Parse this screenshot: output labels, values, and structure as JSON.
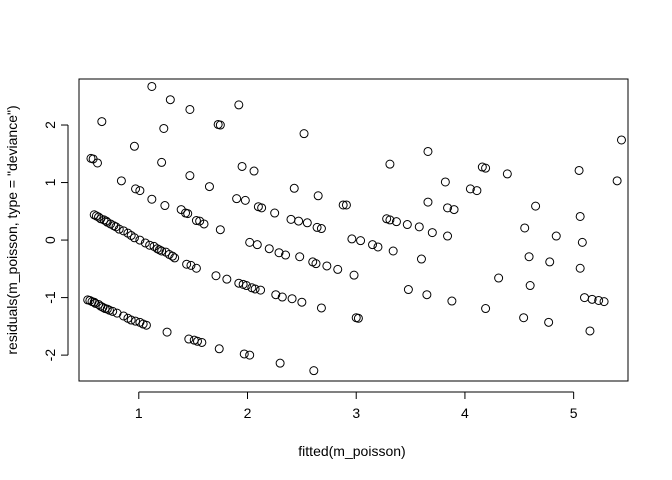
{
  "chart_data": {
    "type": "scatter",
    "xlabel": "fitted(m_poisson)",
    "ylabel": "residuals(m_poisson, type = \"deviance\")",
    "xlim": [
      0.45,
      5.5
    ],
    "ylim": [
      -2.45,
      2.8
    ],
    "x_ticks": [
      1,
      2,
      3,
      4,
      5
    ],
    "y_ticks": [
      -2,
      -1,
      0,
      1,
      2
    ],
    "grid": false,
    "marker": "open-circle",
    "marker_color": "#000000",
    "points": [
      [
        1.12,
        2.67
      ],
      [
        1.29,
        2.44
      ],
      [
        1.47,
        2.27
      ],
      [
        1.92,
        2.35
      ],
      [
        1.73,
        2.01
      ],
      [
        1.75,
        2.0
      ],
      [
        0.66,
        2.06
      ],
      [
        1.23,
        1.94
      ],
      [
        2.52,
        1.85
      ],
      [
        0.96,
        1.63
      ],
      [
        5.44,
        1.74
      ],
      [
        0.56,
        1.42
      ],
      [
        0.58,
        1.41
      ],
      [
        0.62,
        1.34
      ],
      [
        1.21,
        1.35
      ],
      [
        1.95,
        1.28
      ],
      [
        3.31,
        1.32
      ],
      [
        3.66,
        1.54
      ],
      [
        4.16,
        1.27
      ],
      [
        4.19,
        1.25
      ],
      [
        2.06,
        1.2
      ],
      [
        1.47,
        1.12
      ],
      [
        4.39,
        1.15
      ],
      [
        5.05,
        1.21
      ],
      [
        0.84,
        1.03
      ],
      [
        1.65,
        0.93
      ],
      [
        0.97,
        0.89
      ],
      [
        1.01,
        0.86
      ],
      [
        2.43,
        0.9
      ],
      [
        3.82,
        1.01
      ],
      [
        4.05,
        0.89
      ],
      [
        4.11,
        0.86
      ],
      [
        5.4,
        1.03
      ],
      [
        1.12,
        0.71
      ],
      [
        1.24,
        0.6
      ],
      [
        1.9,
        0.72
      ],
      [
        1.98,
        0.69
      ],
      [
        2.65,
        0.77
      ],
      [
        2.1,
        0.58
      ],
      [
        2.13,
        0.56
      ],
      [
        2.25,
        0.47
      ],
      [
        1.39,
        0.53
      ],
      [
        1.43,
        0.47
      ],
      [
        1.45,
        0.46
      ],
      [
        2.88,
        0.61
      ],
      [
        2.91,
        0.61
      ],
      [
        3.66,
        0.66
      ],
      [
        3.84,
        0.56
      ],
      [
        3.9,
        0.53
      ],
      [
        4.65,
        0.59
      ],
      [
        5.06,
        0.41
      ],
      [
        0.59,
        0.44
      ],
      [
        0.61,
        0.42
      ],
      [
        0.63,
        0.4
      ],
      [
        0.65,
        0.37
      ],
      [
        0.68,
        0.35
      ],
      [
        0.7,
        0.33
      ],
      [
        0.71,
        0.31
      ],
      [
        0.74,
        0.28
      ],
      [
        0.77,
        0.25
      ],
      [
        0.79,
        0.23
      ],
      [
        0.82,
        0.19
      ],
      [
        0.86,
        0.16
      ],
      [
        0.9,
        0.12
      ],
      [
        0.93,
        0.08
      ],
      [
        0.96,
        0.04
      ],
      [
        1.01,
        0.0
      ],
      [
        1.06,
        -0.05
      ],
      [
        1.1,
        -0.09
      ],
      [
        1.14,
        -0.11
      ],
      [
        1.17,
        -0.15
      ],
      [
        1.19,
        -0.17
      ],
      [
        1.21,
        -0.19
      ],
      [
        1.25,
        -0.21
      ],
      [
        1.28,
        -0.25
      ],
      [
        1.31,
        -0.28
      ],
      [
        1.33,
        -0.31
      ],
      [
        1.53,
        0.34
      ],
      [
        1.56,
        0.33
      ],
      [
        1.6,
        0.28
      ],
      [
        1.75,
        0.18
      ],
      [
        2.4,
        0.36
      ],
      [
        2.47,
        0.33
      ],
      [
        2.55,
        0.3
      ],
      [
        2.64,
        0.22
      ],
      [
        2.68,
        0.2
      ],
      [
        3.28,
        0.37
      ],
      [
        3.31,
        0.35
      ],
      [
        3.37,
        0.32
      ],
      [
        3.47,
        0.27
      ],
      [
        3.58,
        0.23
      ],
      [
        3.7,
        0.13
      ],
      [
        3.84,
        0.07
      ],
      [
        4.55,
        0.21
      ],
      [
        4.84,
        0.07
      ],
      [
        5.08,
        -0.04
      ],
      [
        2.02,
        -0.04
      ],
      [
        2.09,
        -0.08
      ],
      [
        2.2,
        -0.15
      ],
      [
        2.29,
        -0.22
      ],
      [
        2.35,
        -0.26
      ],
      [
        2.48,
        -0.29
      ],
      [
        2.6,
        -0.38
      ],
      [
        2.63,
        -0.41
      ],
      [
        2.73,
        -0.45
      ],
      [
        2.83,
        -0.51
      ],
      [
        2.96,
        0.02
      ],
      [
        3.04,
        -0.01
      ],
      [
        3.15,
        -0.08
      ],
      [
        3.2,
        -0.12
      ],
      [
        3.34,
        -0.19
      ],
      [
        3.6,
        -0.33
      ],
      [
        4.59,
        -0.29
      ],
      [
        4.78,
        -0.38
      ],
      [
        1.44,
        -0.42
      ],
      [
        1.48,
        -0.44
      ],
      [
        1.53,
        -0.49
      ],
      [
        1.71,
        -0.62
      ],
      [
        1.81,
        -0.68
      ],
      [
        1.92,
        -0.75
      ],
      [
        1.96,
        -0.77
      ],
      [
        1.99,
        -0.79
      ],
      [
        2.04,
        -0.83
      ],
      [
        2.07,
        -0.85
      ],
      [
        2.12,
        -0.87
      ],
      [
        2.26,
        -0.95
      ],
      [
        2.32,
        -0.99
      ],
      [
        2.41,
        -1.02
      ],
      [
        2.5,
        -1.08
      ],
      [
        2.68,
        -1.18
      ],
      [
        2.98,
        -0.61
      ],
      [
        3.48,
        -0.86
      ],
      [
        3.65,
        -0.95
      ],
      [
        3.88,
        -1.06
      ],
      [
        4.31,
        -0.66
      ],
      [
        4.6,
        -0.79
      ],
      [
        5.06,
        -0.49
      ],
      [
        5.1,
        -1.0
      ],
      [
        5.17,
        -1.03
      ],
      [
        5.23,
        -1.05
      ],
      [
        5.28,
        -1.07
      ],
      [
        4.19,
        -1.19
      ],
      [
        0.53,
        -1.04
      ],
      [
        0.55,
        -1.05
      ],
      [
        0.57,
        -1.07
      ],
      [
        0.59,
        -1.08
      ],
      [
        0.6,
        -1.1
      ],
      [
        0.63,
        -1.12
      ],
      [
        0.65,
        -1.15
      ],
      [
        0.67,
        -1.17
      ],
      [
        0.69,
        -1.19
      ],
      [
        0.71,
        -1.2
      ],
      [
        0.73,
        -1.22
      ],
      [
        0.76,
        -1.24
      ],
      [
        0.8,
        -1.27
      ],
      [
        0.86,
        -1.32
      ],
      [
        0.9,
        -1.36
      ],
      [
        0.93,
        -1.39
      ],
      [
        0.97,
        -1.41
      ],
      [
        1.01,
        -1.43
      ],
      [
        1.04,
        -1.46
      ],
      [
        1.07,
        -1.48
      ],
      [
        3.0,
        -1.35
      ],
      [
        3.02,
        -1.36
      ],
      [
        4.54,
        -1.35
      ],
      [
        4.77,
        -1.43
      ],
      [
        5.15,
        -1.58
      ],
      [
        1.26,
        -1.6
      ],
      [
        1.46,
        -1.72
      ],
      [
        1.51,
        -1.74
      ],
      [
        1.54,
        -1.76
      ],
      [
        1.58,
        -1.78
      ],
      [
        1.74,
        -1.89
      ],
      [
        1.97,
        -1.98
      ],
      [
        2.02,
        -2.0
      ],
      [
        2.3,
        -2.14
      ],
      [
        2.61,
        -2.27
      ]
    ]
  }
}
